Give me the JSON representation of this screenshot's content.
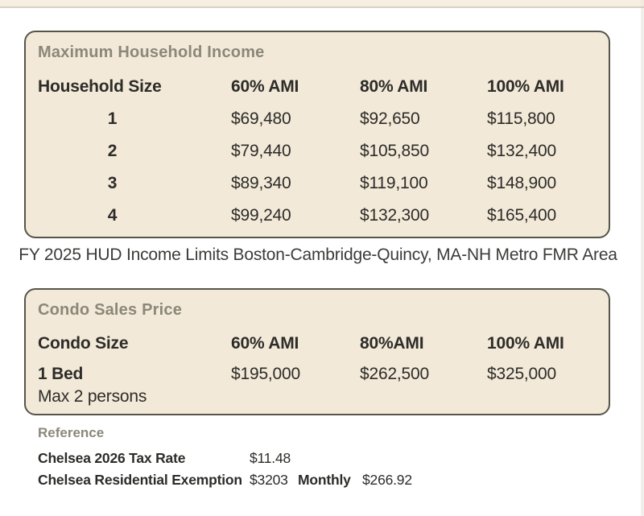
{
  "income_table": {
    "title": "Maximum Household Income",
    "columns": [
      "Household Size",
      "60% AMI",
      "80% AMI",
      "100% AMI"
    ],
    "rows": [
      {
        "size": "1",
        "ami_60": "$69,480",
        "ami_80": "$92,650",
        "ami_100": "$115,800"
      },
      {
        "size": "2",
        "ami_60": "$79,440",
        "ami_80": "$105,850",
        "ami_100": "$132,400"
      },
      {
        "size": "3",
        "ami_60": "$89,340",
        "ami_80": "$119,100",
        "ami_100": "$148,900"
      },
      {
        "size": "4",
        "ami_60": "$99,240",
        "ami_80": "$132,300",
        "ami_100": "$165,400"
      }
    ]
  },
  "caption": "FY 2025 HUD Income Limits Boston-Cambridge-Quincy, MA-NH Metro FMR Area",
  "condo_table": {
    "title": "Condo Sales Price",
    "columns": [
      "Condo Size",
      "60% AMI",
      "80%AMI",
      "100% AMI"
    ],
    "rows": [
      {
        "size": "1 Bed",
        "note": "Max 2 persons",
        "ami_60": "$195,000",
        "ami_80": "$262,500",
        "ami_100": "$325,000"
      }
    ]
  },
  "reference": {
    "heading": "Reference",
    "rows": [
      {
        "label": "Chelsea 2026 Tax Rate",
        "value": "$11.48",
        "label2": "",
        "value2": ""
      },
      {
        "label": "Chelsea Residential Exemption",
        "value": "$3203",
        "label2": "Monthly",
        "value2": "$266.92"
      }
    ]
  },
  "colors": {
    "panel_bg": "#f2e9d8",
    "panel_border": "#57544c",
    "heading": "#8b8779",
    "text": "#2d2c29"
  }
}
